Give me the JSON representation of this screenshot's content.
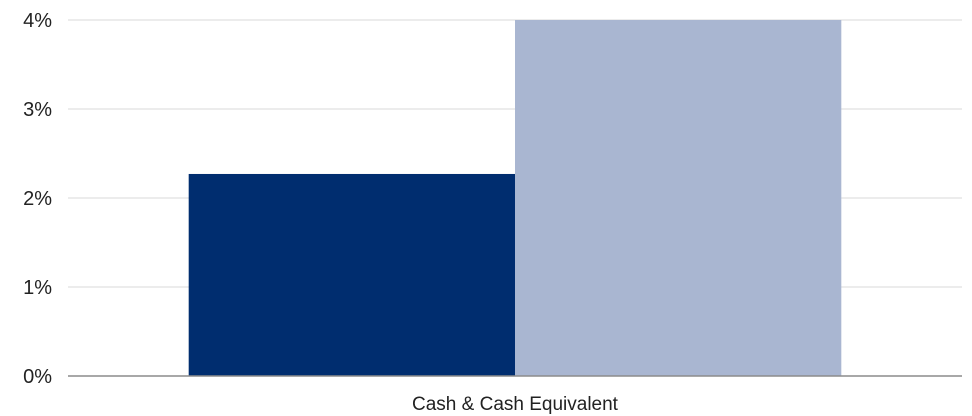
{
  "chart_data": {
    "type": "bar",
    "categories": [
      "Cash & Cash Equivalent"
    ],
    "series": [
      {
        "values": [
          2.27
        ],
        "color": "#002d6f"
      },
      {
        "values": [
          4.0
        ],
        "color": "#a9b6d1"
      }
    ],
    "ylim": [
      0,
      4
    ],
    "yticks": [
      0,
      1,
      2,
      3,
      4
    ],
    "ytick_labels": [
      "0%",
      "1%",
      "2%",
      "3%",
      "4%"
    ],
    "grid": true,
    "legend": "none"
  }
}
